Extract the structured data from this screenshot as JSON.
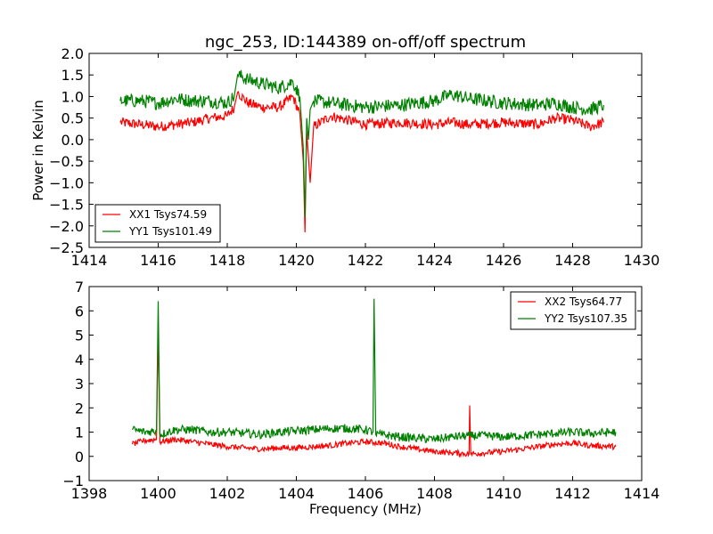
{
  "chart_data": [
    {
      "type": "line",
      "title": "ngc_253, ID:144389 on-off/off spectrum",
      "xlabel": "",
      "ylabel": "Power in Kelvin",
      "xlim": [
        1414,
        1430
      ],
      "ylim": [
        -2.5,
        2.0
      ],
      "xticks": [
        1414,
        1416,
        1418,
        1420,
        1422,
        1424,
        1426,
        1428,
        1430
      ],
      "yticks": [
        -2.5,
        -2.0,
        -1.5,
        -1.0,
        -0.5,
        0.0,
        0.5,
        1.0,
        1.5,
        2.0
      ],
      "ytick_labels": [
        "−2.5",
        "−2.0",
        "−1.5",
        "−1.0",
        "−0.5",
        "0.0",
        "0.5",
        "1.0",
        "1.5",
        "2.0"
      ],
      "legend_position": "lower-left",
      "grid": false,
      "series": [
        {
          "name": "XX1 Tsys74.59",
          "color": "#ff0000",
          "x": [
            1414.9,
            1415.5,
            1416.0,
            1416.5,
            1417.0,
            1417.5,
            1418.0,
            1418.2,
            1418.3,
            1418.6,
            1419.0,
            1419.5,
            1419.9,
            1420.1,
            1420.2,
            1420.25,
            1420.3,
            1420.35,
            1420.4,
            1420.5,
            1421.0,
            1421.5,
            1422.0,
            1423.0,
            1424.0,
            1424.5,
            1425.0,
            1426.0,
            1427.0,
            1427.5,
            1428.0,
            1428.5,
            1428.9
          ],
          "values": [
            0.4,
            0.35,
            0.3,
            0.35,
            0.4,
            0.5,
            0.55,
            0.75,
            1.1,
            0.85,
            0.75,
            0.75,
            1.0,
            0.6,
            -0.5,
            -2.15,
            0.2,
            -0.4,
            -1.0,
            0.3,
            0.55,
            0.45,
            0.35,
            0.4,
            0.35,
            0.4,
            0.35,
            0.4,
            0.35,
            0.5,
            0.45,
            0.3,
            0.4
          ]
        },
        {
          "name": "YY1 Tsys101.49",
          "color": "#008000",
          "x": [
            1414.9,
            1415.5,
            1416.0,
            1416.5,
            1417.0,
            1417.5,
            1418.0,
            1418.2,
            1418.3,
            1418.6,
            1419.0,
            1419.5,
            1419.9,
            1420.1,
            1420.2,
            1420.25,
            1420.3,
            1420.35,
            1420.4,
            1420.5,
            1421.0,
            1421.5,
            1422.0,
            1423.0,
            1424.0,
            1424.5,
            1425.0,
            1426.0,
            1427.0,
            1427.5,
            1428.0,
            1428.5,
            1428.9
          ],
          "values": [
            0.9,
            0.9,
            0.85,
            0.95,
            0.9,
            0.9,
            0.85,
            1.0,
            1.5,
            1.4,
            1.3,
            1.2,
            1.35,
            1.0,
            -0.2,
            -1.8,
            0.5,
            0.0,
            0.7,
            0.9,
            0.85,
            0.8,
            0.75,
            0.8,
            0.9,
            1.05,
            0.95,
            0.85,
            0.8,
            0.85,
            0.75,
            0.7,
            0.8
          ]
        }
      ]
    },
    {
      "type": "line",
      "title": "",
      "xlabel": "Frequency (MHz)",
      "ylabel": "",
      "xlim": [
        1398,
        1414
      ],
      "ylim": [
        -1,
        7
      ],
      "xticks": [
        1398,
        1400,
        1402,
        1404,
        1406,
        1408,
        1410,
        1412,
        1414
      ],
      "yticks": [
        -1,
        0,
        1,
        2,
        3,
        4,
        5,
        6,
        7
      ],
      "ytick_labels": [
        "−1",
        "0",
        "1",
        "2",
        "3",
        "4",
        "5",
        "6",
        "7"
      ],
      "legend_position": "upper-right",
      "grid": false,
      "series": [
        {
          "name": "XX2 Tsys64.77",
          "color": "#ff0000",
          "x": [
            1399.25,
            1399.6,
            1399.95,
            1400.0,
            1400.05,
            1400.5,
            1401.0,
            1401.5,
            1402.0,
            1402.5,
            1403.0,
            1403.5,
            1404.0,
            1404.5,
            1405.0,
            1405.5,
            1406.0,
            1406.5,
            1407.0,
            1407.5,
            1408.0,
            1408.5,
            1409.0,
            1409.02,
            1409.05,
            1409.5,
            1410.0,
            1410.5,
            1411.0,
            1411.5,
            1412.0,
            1412.5,
            1413.25
          ],
          "values": [
            0.5,
            0.65,
            0.7,
            5.3,
            0.6,
            0.7,
            0.6,
            0.5,
            0.4,
            0.35,
            0.3,
            0.35,
            0.35,
            0.4,
            0.45,
            0.55,
            0.6,
            0.55,
            0.4,
            0.3,
            0.2,
            0.15,
            0.1,
            2.1,
            0.1,
            0.15,
            0.2,
            0.3,
            0.4,
            0.5,
            0.55,
            0.45,
            0.4
          ]
        },
        {
          "name": "YY2 Tsys107.35",
          "color": "#008000",
          "x": [
            1399.25,
            1399.6,
            1399.95,
            1400.0,
            1400.05,
            1400.5,
            1401.0,
            1401.5,
            1402.0,
            1402.5,
            1403.0,
            1403.5,
            1404.0,
            1404.5,
            1405.0,
            1405.5,
            1406.0,
            1406.22,
            1406.25,
            1406.3,
            1406.5,
            1407.0,
            1407.5,
            1408.0,
            1408.5,
            1409.0,
            1409.5,
            1410.0,
            1410.5,
            1411.0,
            1411.5,
            1412.0,
            1412.5,
            1413.25
          ],
          "values": [
            1.1,
            1.0,
            1.05,
            6.4,
            0.9,
            1.1,
            1.1,
            1.0,
            1.0,
            0.95,
            0.9,
            1.0,
            1.05,
            1.1,
            1.15,
            1.15,
            1.1,
            1.0,
            6.5,
            0.9,
            0.9,
            0.8,
            0.75,
            0.7,
            0.8,
            0.85,
            0.85,
            0.8,
            0.85,
            0.9,
            0.95,
            1.0,
            0.95,
            1.0
          ]
        }
      ]
    }
  ]
}
